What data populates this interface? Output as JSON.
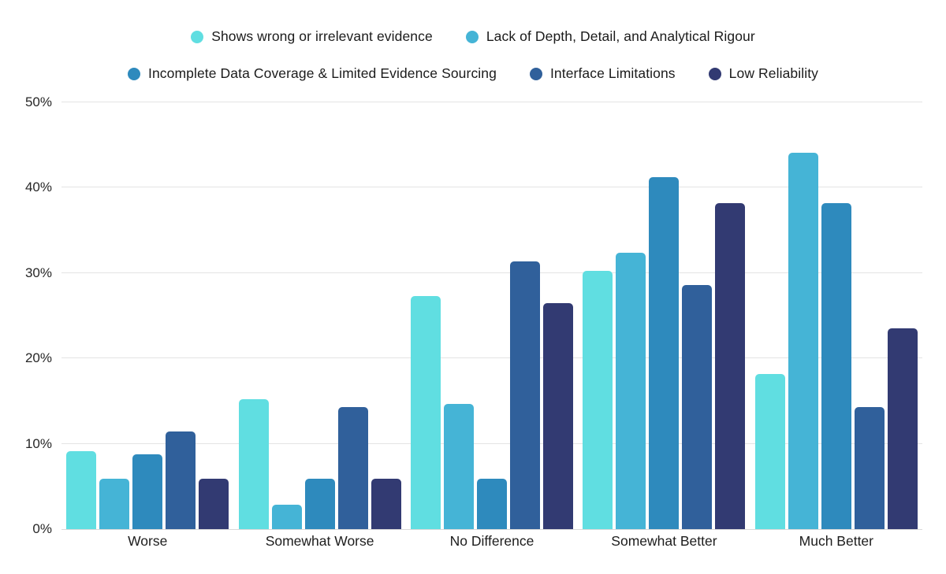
{
  "page": {
    "background_color": "#ffffff",
    "text_color": "#1b1b1b",
    "gridline_color": "#e3e3e3",
    "axis_line_color": "#d9d9d9"
  },
  "chart_data": {
    "type": "bar",
    "title": "",
    "xlabel": "",
    "ylabel": "",
    "categories": [
      "Worse",
      "Somewhat Worse",
      "No Difference",
      "Somewhat Better",
      "Much Better"
    ],
    "series": [
      {
        "name": "Shows wrong or irrelevant evidence",
        "color": "#60dee1",
        "values": [
          9.1,
          15.2,
          27.3,
          30.3,
          18.2
        ]
      },
      {
        "name": "Lack of Depth, Detail, and Analytical Rigour",
        "color": "#45b4d6",
        "values": [
          5.9,
          2.9,
          14.7,
          32.4,
          44.1
        ]
      },
      {
        "name": "Incomplete Data Coverage & Limited Evidence Sourcing",
        "color": "#2e8abd",
        "values": [
          8.8,
          5.9,
          5.9,
          41.2,
          38.2
        ]
      },
      {
        "name": "Interface Limitations",
        "color": "#30609b",
        "values": [
          11.4,
          14.3,
          31.4,
          28.6,
          14.3
        ]
      },
      {
        "name": "Low Reliability",
        "color": "#323a72",
        "values": [
          5.9,
          5.9,
          26.5,
          38.2,
          23.5
        ]
      }
    ],
    "ylim": [
      0,
      50
    ],
    "yticks": [
      0,
      10,
      20,
      30,
      40,
      50
    ],
    "ytick_suffix": "%",
    "ytick_labels": [
      "0%",
      "10%",
      "20%",
      "30%",
      "40%",
      "50%"
    ],
    "grid": "horizontal",
    "legend_position": "top",
    "legend_rows": [
      [
        0,
        1
      ],
      [
        2,
        3,
        4
      ]
    ]
  }
}
